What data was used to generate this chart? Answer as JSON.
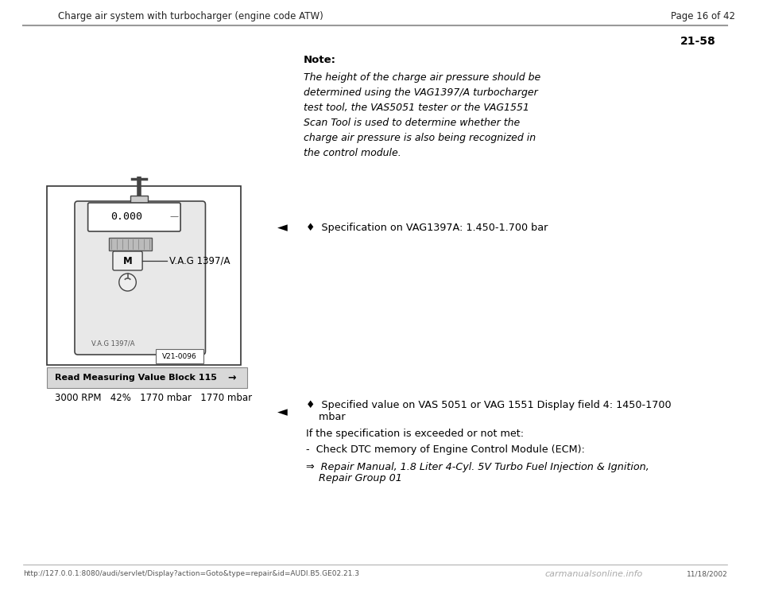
{
  "bg_color": "#ffffff",
  "header_left": "Charge air system with turbocharger (engine code ATW)",
  "header_right": "Page 16 of 42",
  "page_number": "21-58",
  "note_title": "Note:",
  "note_body": "The height of the charge air pressure should be\ndetermined using the VAG1397/A turbocharger\ntest tool, the VAS5051 tester or the VAG1551\nScan Tool is used to determine whether the\ncharge air pressure is also being recognized in\nthe control module.",
  "bullet1": "♦  Specification on VAG1397A: 1.450-1.700 bar",
  "bullet2_line1": "♦  Specified value on VAS 5051 or VAG 1551 Display field 4: 1450-1700",
  "bullet2_line2": "    mbar",
  "if_spec_text": "If the specification is exceeded or not met:",
  "check_dtc": "-  Check DTC memory of Engine Control Module (ECM):",
  "repair_manual_line1": "⇒  Repair Manual, 1.8 Liter 4-Cyl. 5V Turbo Fuel Injection & Ignition,",
  "repair_manual_line2": "    Repair Group 01",
  "read_block_label": "Read Measuring Value Block 115",
  "read_block_arrow": "→",
  "data_row": "3000 RPM   42%   1770 mbar   1770 mbar",
  "footer_url": "http://127.0.0.1:8080/audi/servlet/Display?action=Goto&type=repair&id=AUDI.B5.GE02.21.3",
  "footer_right": "11/18/2002",
  "footer_logo": "carmanualsonline.info"
}
